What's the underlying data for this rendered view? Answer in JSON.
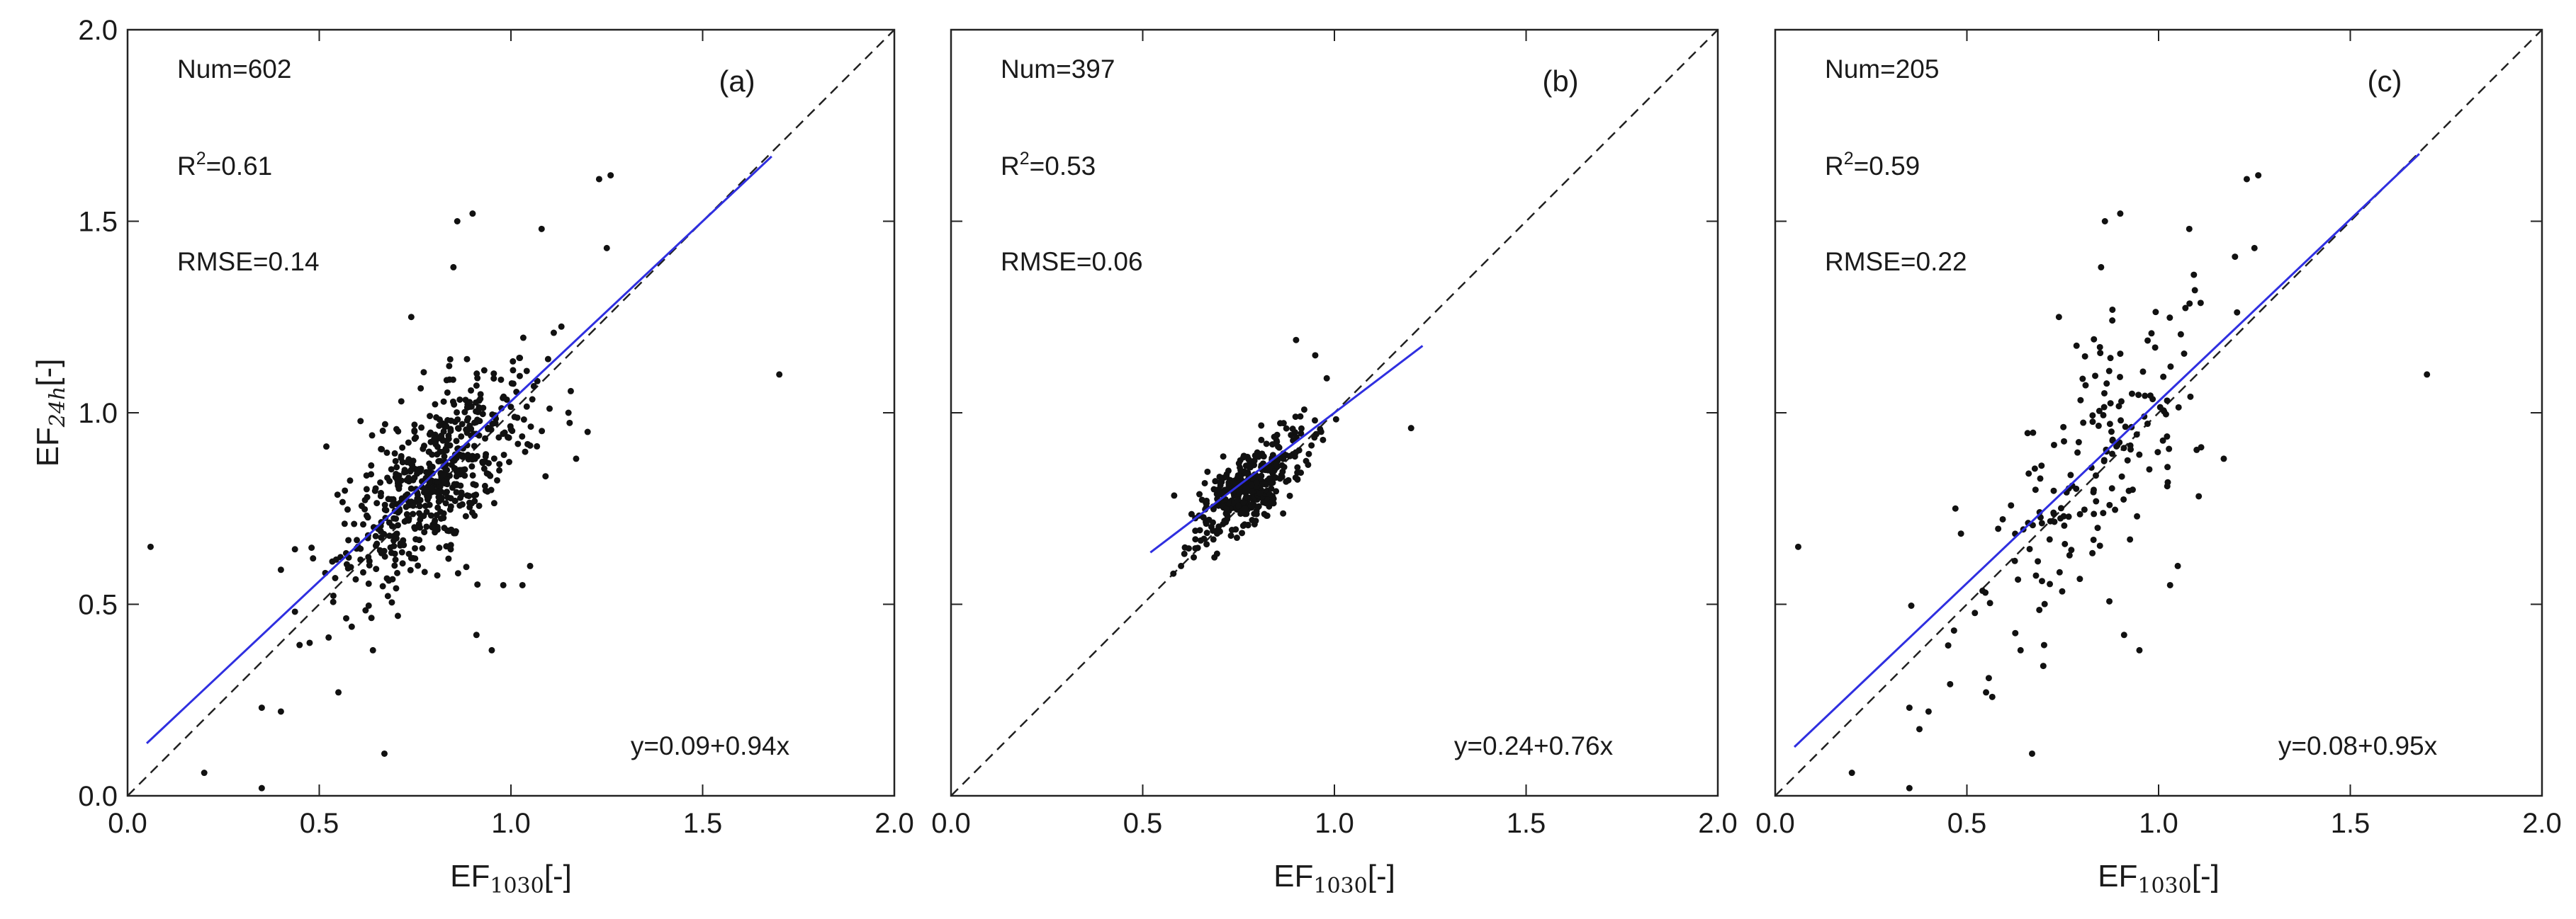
{
  "chart_data": [
    {
      "type": "scatter",
      "panel": "(a)",
      "annotations": {
        "num": "Num=602",
        "r2_prefix": "R",
        "r2_sup": "2",
        "r2_value": "=0.61",
        "rmse": "RMSE=0.14",
        "equation": "y=0.09+0.94x"
      },
      "xlabel": {
        "main": "EF",
        "sub": "1030",
        "unit": "[-]"
      },
      "ylabel": {
        "main": "EF",
        "sub": "24h",
        "unit": "[-]"
      },
      "xlim": [
        0,
        2
      ],
      "ylim": [
        0,
        2
      ],
      "xticks": [
        "0.0",
        "0.5",
        "1.0",
        "1.5",
        "2.0"
      ],
      "yticks": [
        "0.0",
        "0.5",
        "1.0",
        "1.5",
        "2.0"
      ],
      "n_points": 602,
      "cluster": {
        "cx": 0.8,
        "cy": 0.82,
        "sx": 0.12,
        "sy": 0.14
      },
      "outliers": [
        [
          0.06,
          0.65
        ],
        [
          0.2,
          0.06
        ],
        [
          0.35,
          0.23
        ],
        [
          0.35,
          0.02
        ],
        [
          0.4,
          0.22
        ],
        [
          0.4,
          0.59
        ],
        [
          0.55,
          0.27
        ],
        [
          0.64,
          0.38
        ],
        [
          0.67,
          0.11
        ],
        [
          0.74,
          1.25
        ],
        [
          0.85,
          1.38
        ],
        [
          0.86,
          1.5
        ],
        [
          0.9,
          1.52
        ],
        [
          0.91,
          0.42
        ],
        [
          0.95,
          0.38
        ],
        [
          0.98,
          0.55
        ],
        [
          1.03,
          0.55
        ],
        [
          1.05,
          0.6
        ],
        [
          1.08,
          1.48
        ],
        [
          1.15,
          1.0
        ],
        [
          1.17,
          0.88
        ],
        [
          1.2,
          0.95
        ],
        [
          1.23,
          1.61
        ],
        [
          1.26,
          1.62
        ],
        [
          1.25,
          1.43
        ],
        [
          1.7,
          1.1
        ]
      ],
      "reference_line": {
        "x": [
          0,
          2
        ],
        "y": [
          0,
          2
        ],
        "style": "dashed",
        "color": "#222222"
      },
      "fit_line": {
        "intercept": 0.09,
        "slope": 0.94,
        "x_range": [
          0.05,
          1.68
        ],
        "color": "#2f2fe0"
      }
    },
    {
      "type": "scatter",
      "panel": "(b)",
      "annotations": {
        "num": "Num=397",
        "r2_prefix": "R",
        "r2_sup": "2",
        "r2_value": "=0.53",
        "rmse": "RMSE=0.06",
        "equation": "y=0.24+0.76x"
      },
      "xlabel": {
        "main": "EF",
        "sub": "1030",
        "unit": "[-]"
      },
      "ylabel": null,
      "xlim": [
        0,
        2
      ],
      "ylim": [
        0,
        2
      ],
      "xticks": [
        "0.0",
        "0.5",
        "1.0",
        "1.5",
        "2.0"
      ],
      "yticks": [],
      "n_points": 397,
      "cluster": {
        "cx": 0.78,
        "cy": 0.81,
        "sx": 0.075,
        "sy": 0.075
      },
      "outliers": [
        [
          0.58,
          0.58
        ],
        [
          0.6,
          0.6
        ],
        [
          0.9,
          1.19
        ],
        [
          0.95,
          1.15
        ],
        [
          1.2,
          0.96
        ],
        [
          0.98,
          1.09
        ]
      ],
      "reference_line": {
        "x": [
          0,
          2
        ],
        "y": [
          0,
          2
        ],
        "style": "dashed",
        "color": "#222222"
      },
      "fit_line": {
        "intercept": 0.24,
        "slope": 0.76,
        "x_range": [
          0.52,
          1.23
        ],
        "color": "#2f2fe0"
      }
    },
    {
      "type": "scatter",
      "panel": "(c)",
      "annotations": {
        "num": "Num=205",
        "r2_prefix": "R",
        "r2_sup": "2",
        "r2_value": "=0.59",
        "rmse": "RMSE=0.22",
        "equation": "y=0.08+0.95x"
      },
      "xlabel": {
        "main": "EF",
        "sub": "1030",
        "unit": "[-]"
      },
      "ylabel": null,
      "xlim": [
        0,
        2
      ],
      "ylim": [
        0,
        2
      ],
      "xticks": [
        "0.0",
        "0.5",
        "1.0",
        "1.5",
        "2.0"
      ],
      "yticks": [],
      "n_points": 205,
      "cluster": {
        "cx": 0.84,
        "cy": 0.86,
        "sx": 0.14,
        "sy": 0.2
      },
      "outliers": [
        [
          0.06,
          0.65
        ],
        [
          0.2,
          0.06
        ],
        [
          0.35,
          0.23
        ],
        [
          0.35,
          0.02
        ],
        [
          0.4,
          0.22
        ],
        [
          0.47,
          0.75
        ],
        [
          0.55,
          0.27
        ],
        [
          0.64,
          0.38
        ],
        [
          0.67,
          0.11
        ],
        [
          0.74,
          1.25
        ],
        [
          0.85,
          1.38
        ],
        [
          0.86,
          1.5
        ],
        [
          0.9,
          1.52
        ],
        [
          0.91,
          0.42
        ],
        [
          0.95,
          0.38
        ],
        [
          1.03,
          0.55
        ],
        [
          1.05,
          0.6
        ],
        [
          1.08,
          1.48
        ],
        [
          1.17,
          0.88
        ],
        [
          1.23,
          1.61
        ],
        [
          1.26,
          1.62
        ],
        [
          1.25,
          1.43
        ],
        [
          1.7,
          1.1
        ]
      ],
      "reference_line": {
        "x": [
          0,
          2
        ],
        "y": [
          0,
          2
        ],
        "style": "dashed",
        "color": "#222222"
      },
      "fit_line": {
        "intercept": 0.08,
        "slope": 0.95,
        "x_range": [
          0.05,
          1.68
        ],
        "color": "#2f2fe0"
      }
    }
  ]
}
